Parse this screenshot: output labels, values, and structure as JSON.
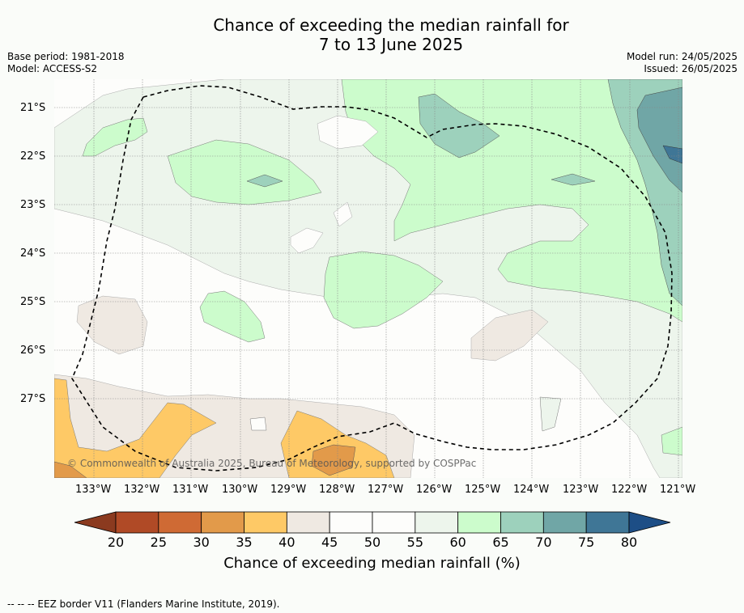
{
  "header": {
    "title_line1": "Chance of exceeding the median rainfall for",
    "title_line2": "7 to 13 June 2025",
    "base_period": "Base period: 1981-2018",
    "model": "Model: ACCESS-S2",
    "model_run": "Model run: 24/05/2025",
    "issued": "Issued: 26/05/2025"
  },
  "map": {
    "copyright": "© Commonwealth of Australia 2025, Bureau of Meteorology, supported by COSPPac",
    "lat_labels": [
      "21°S",
      "22°S",
      "23°S",
      "24°S",
      "25°S",
      "26°S",
      "27°S"
    ],
    "lon_labels": [
      "133°W",
      "132°W",
      "131°W",
      "130°W",
      "129°W",
      "128°W",
      "127°W",
      "126°W",
      "125°W",
      "124°W",
      "123°W",
      "122°W",
      "121°W"
    ]
  },
  "colorbar": {
    "ticks": [
      "20",
      "25",
      "30",
      "35",
      "40",
      "45",
      "50",
      "55",
      "60",
      "65",
      "70",
      "75",
      "80"
    ],
    "colors": [
      "#8b3a1f",
      "#b04a26",
      "#cf6a34",
      "#e29a4a",
      "#fec966",
      "#efe9e2",
      "#fdfdfb",
      "#fdfdfb",
      "#edf5ec",
      "#ccfccc",
      "#9dd1bc",
      "#70a6a6",
      "#3f7696",
      "#1d4e86"
    ],
    "label": "Chance of exceeding median rainfall (%)"
  },
  "footer": {
    "legend_text": "--  --  -- EEZ border V11 (Flanders Marine Institute, 2019)."
  }
}
